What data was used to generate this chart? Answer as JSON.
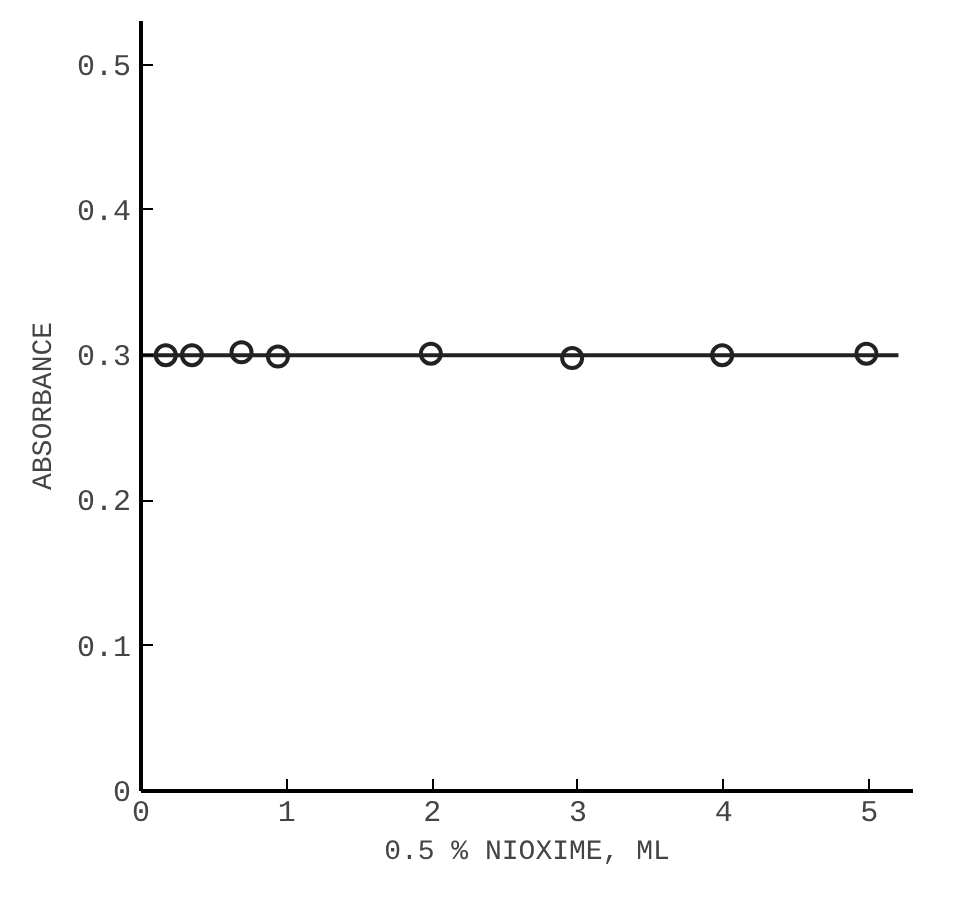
{
  "chart_data": {
    "type": "scatter",
    "xlabel": "0.5 % NIOXIME, ML",
    "ylabel": "ABSORBANCE",
    "xlim": [
      0,
      5.3
    ],
    "ylim": [
      0,
      0.53
    ],
    "xticks": [
      0,
      1,
      2,
      3,
      4,
      5
    ],
    "yticks": [
      0,
      0.1,
      0.2,
      0.3,
      0.4,
      0.5
    ],
    "grid": false,
    "series": [
      {
        "marker": "circle",
        "color": "#222222",
        "x": [
          0.17,
          0.35,
          0.69,
          0.94,
          1.99,
          2.96,
          3.99,
          4.98
        ],
        "values": [
          0.3,
          0.3,
          0.302,
          0.299,
          0.301,
          0.298,
          0.3,
          0.301
        ]
      },
      {
        "type": "line",
        "marker": "none",
        "color": "#222222",
        "x": [
          0,
          5.2
        ],
        "values": [
          0.3,
          0.3
        ]
      }
    ]
  }
}
